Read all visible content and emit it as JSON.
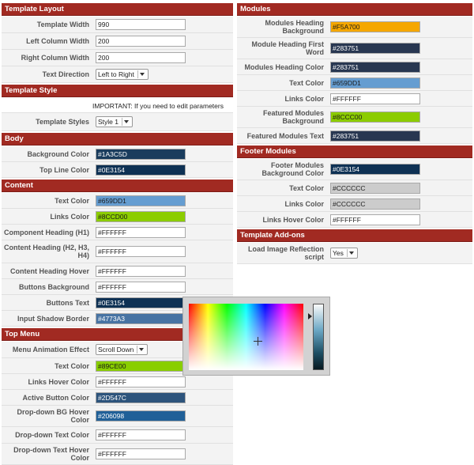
{
  "left_column": {
    "template_layout": {
      "title": "Template Layout",
      "rows": [
        {
          "label": "Template Width",
          "value": "990"
        },
        {
          "label": "Left Column Width",
          "value": "200"
        },
        {
          "label": "Right Column Width",
          "value": "200"
        }
      ],
      "text_direction": {
        "label": "Text Direction",
        "value": "Left to Right"
      }
    },
    "template_style": {
      "title": "Template Style",
      "note": "IMPORTANT: If you need to edit parameters",
      "styles": {
        "label": "Template Styles",
        "value": "Style 1"
      }
    },
    "body": {
      "title": "Body",
      "rows": [
        {
          "label": "Background Color",
          "value": "#1A3C5D",
          "color": "#1A3C5D",
          "text_color": "#ffffff"
        },
        {
          "label": "Top Line Color",
          "value": "#0E3154",
          "color": "#0E3154",
          "text_color": "#ffffff"
        }
      ]
    },
    "content": {
      "title": "Content",
      "rows": [
        {
          "label": "Text Color",
          "value": "#659DD1",
          "color": "#659DD1",
          "text_color": "#1a1a1a"
        },
        {
          "label": "Links Color",
          "value": "#8CCD00",
          "color": "#8CCD00",
          "text_color": "#1a1a1a"
        },
        {
          "label": "Component Heading (H1)",
          "value": "#FFFFFF",
          "color": "#FFFFFF",
          "text_color": "#222222"
        },
        {
          "label": "Content Heading (H2, H3, H4)",
          "value": "#FFFFFF",
          "color": "#FFFFFF",
          "text_color": "#222222"
        },
        {
          "label": "Content Heading Hover",
          "value": "#FFFFFF",
          "color": "#FFFFFF",
          "text_color": "#222222"
        },
        {
          "label": "Buttons Background",
          "value": "#FFFFFF",
          "color": "#FFFFFF",
          "text_color": "#222222"
        },
        {
          "label": "Buttons Text",
          "value": "#0E3154",
          "color": "#0E3154",
          "text_color": "#ffffff"
        },
        {
          "label": "Input Shadow Border",
          "value": "#4773A3",
          "color": "#4773A3",
          "text_color": "#ffffff"
        }
      ]
    },
    "top_menu": {
      "title": "Top Menu",
      "animation": {
        "label": "Menu Animation Effect",
        "value": "Scroll Down"
      },
      "rows": [
        {
          "label": "Text Color",
          "value": "#89CE00",
          "color": "#89CE00",
          "text_color": "#1a1a1a"
        },
        {
          "label": "Links Hover Color",
          "value": "#FFFFFF",
          "color": "#FFFFFF",
          "text_color": "#222222"
        },
        {
          "label": "Active Button Color",
          "value": "#2D547C",
          "color": "#2D547C",
          "text_color": "#ffffff"
        },
        {
          "label": "Drop-down BG Hover Color",
          "value": "#206098",
          "color": "#206098",
          "text_color": "#ffffff"
        },
        {
          "label": "Drop-down Text Color",
          "value": "#FFFFFF",
          "color": "#FFFFFF",
          "text_color": "#222222"
        },
        {
          "label": "Drop-down Text Hover Color",
          "value": "#FFFFFF",
          "color": "#FFFFFF",
          "text_color": "#222222"
        }
      ]
    }
  },
  "right_column": {
    "modules": {
      "title": "Modules",
      "rows": [
        {
          "label": "Modules Heading Background",
          "value": "#F5A700",
          "color": "#F5A700",
          "text_color": "#1a1a1a"
        },
        {
          "label": "Module Heading First Word",
          "value": "#283751",
          "color": "#283751",
          "text_color": "#ffffff"
        },
        {
          "label": "Modules Heading Color",
          "value": "#283751",
          "color": "#283751",
          "text_color": "#ffffff"
        },
        {
          "label": "Text Color",
          "value": "#659DD1",
          "color": "#659DD1",
          "text_color": "#1a1a1a"
        },
        {
          "label": "Links Color",
          "value": "#FFFFFF",
          "color": "#FFFFFF",
          "text_color": "#222222"
        },
        {
          "label": "Featured Modules Background",
          "value": "#8CCC00",
          "color": "#8CCC00",
          "text_color": "#1a1a1a"
        },
        {
          "label": "Featured Modules Text",
          "value": "#283751",
          "color": "#283751",
          "text_color": "#ffffff"
        }
      ]
    },
    "footer_modules": {
      "title": "Footer Modules",
      "rows": [
        {
          "label": "Footer Modules Background Color",
          "value": "#0E3154",
          "color": "#0E3154",
          "text_color": "#ffffff"
        },
        {
          "label": "Text Color",
          "value": "#CCCCCC",
          "color": "#CCCCCC",
          "text_color": "#222222"
        },
        {
          "label": "Links Color",
          "value": "#CCCCCC",
          "color": "#CCCCCC",
          "text_color": "#222222"
        },
        {
          "label": "Links Hover Color",
          "value": "#FFFFFF",
          "color": "#FFFFFF",
          "text_color": "#222222"
        }
      ]
    },
    "template_addons": {
      "title": "Template Add-ons",
      "reflection": {
        "label": "Load Image Reflection script",
        "value": "Yes"
      }
    }
  },
  "color_picker": {
    "icons": [
      "crosshair-icon",
      "slider-arrow-icon"
    ]
  }
}
